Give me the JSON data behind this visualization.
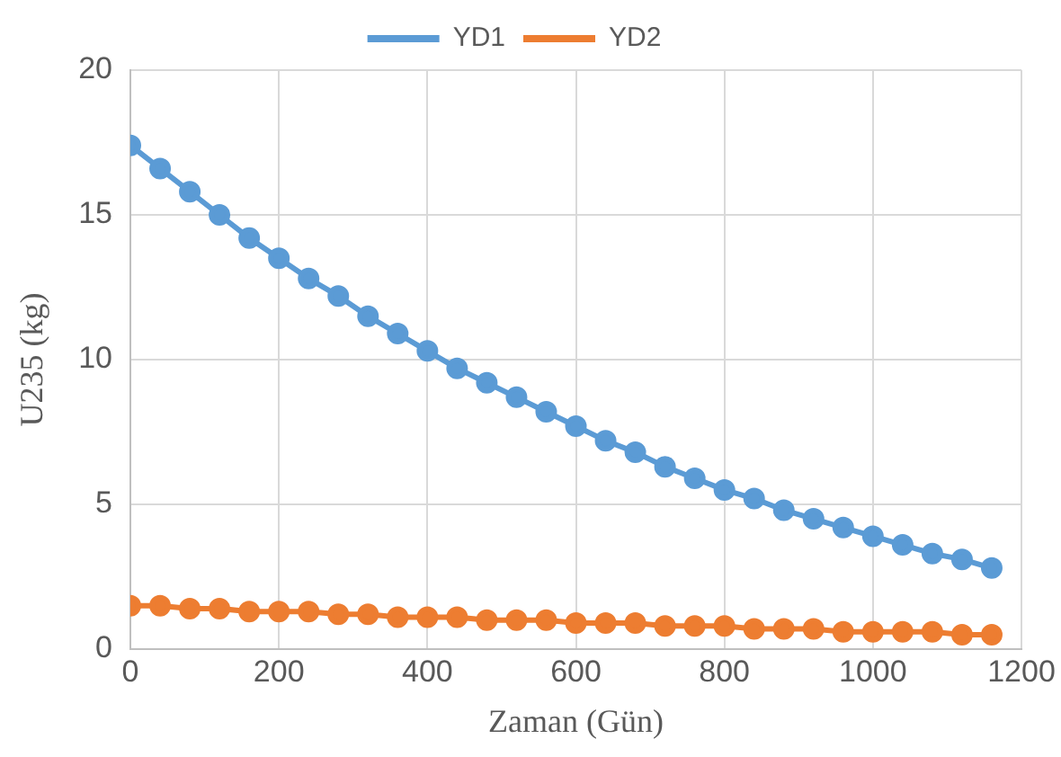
{
  "chart_data": {
    "type": "line",
    "xlabel": "Zaman (Gün)",
    "ylabel": "U235 (kg)",
    "x": [
      0,
      40,
      80,
      120,
      160,
      200,
      240,
      280,
      320,
      360,
      400,
      440,
      480,
      520,
      560,
      600,
      640,
      680,
      720,
      760,
      800,
      840,
      880,
      920,
      960,
      1000,
      1040,
      1080,
      1120,
      1160
    ],
    "series": [
      {
        "name": "YD1",
        "color": "#5b9bd5",
        "values": [
          17.4,
          16.6,
          15.8,
          15.0,
          14.2,
          13.5,
          12.8,
          12.2,
          11.5,
          10.9,
          10.3,
          9.7,
          9.2,
          8.7,
          8.2,
          7.7,
          7.2,
          6.8,
          6.3,
          5.9,
          5.5,
          5.2,
          4.8,
          4.5,
          4.2,
          3.9,
          3.6,
          3.3,
          3.1,
          2.8
        ]
      },
      {
        "name": "YD2",
        "color": "#ed7d31",
        "values": [
          1.5,
          1.5,
          1.4,
          1.4,
          1.3,
          1.3,
          1.3,
          1.2,
          1.2,
          1.1,
          1.1,
          1.1,
          1.0,
          1.0,
          1.0,
          0.9,
          0.9,
          0.9,
          0.8,
          0.8,
          0.8,
          0.7,
          0.7,
          0.7,
          0.6,
          0.6,
          0.6,
          0.6,
          0.5,
          0.5
        ]
      }
    ],
    "xlim": [
      0,
      1200
    ],
    "xticks": [
      0,
      200,
      400,
      600,
      800,
      1000,
      1200
    ],
    "ylim": [
      0,
      20
    ],
    "yticks": [
      0,
      5,
      10,
      15,
      20
    ],
    "grid": true,
    "legend": "top",
    "marker": "circle",
    "line_style": "solid"
  }
}
